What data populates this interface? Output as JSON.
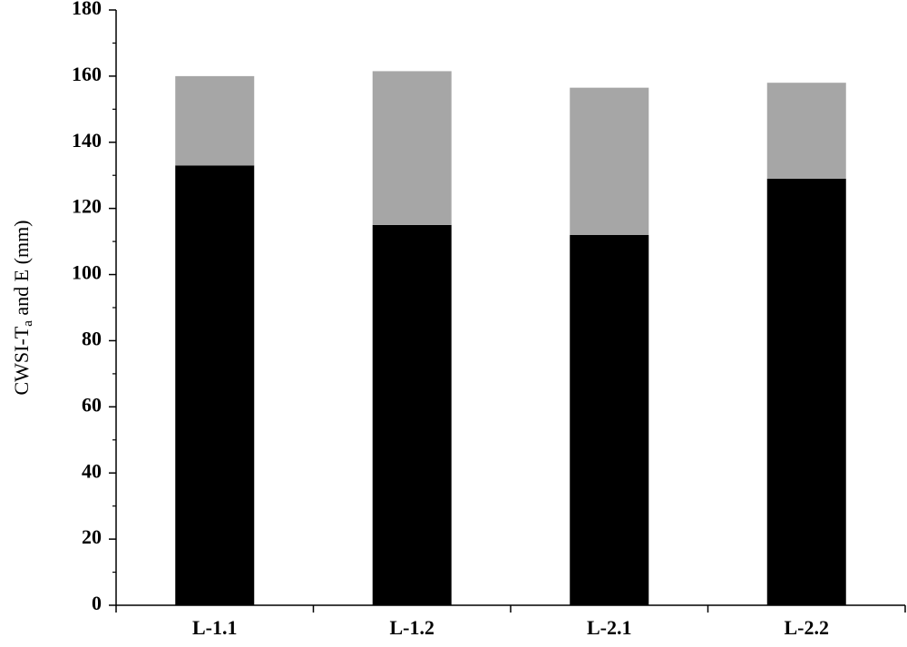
{
  "chart_data": {
    "type": "stacked_bar",
    "ylabel": [
      "CWSI-T",
      "a",
      " and E (mm)"
    ],
    "categories": [
      "L-1.1",
      "L-1.2",
      "L-2.1",
      "L-2.2"
    ],
    "series": [
      {
        "color": "#000000",
        "values": [
          133,
          115,
          112,
          129
        ]
      },
      {
        "color": "#a6a6a6",
        "values": [
          27,
          46.5,
          44.5,
          29
        ]
      }
    ],
    "ylim": [
      0,
      180
    ],
    "yticks": [
      0,
      20,
      40,
      60,
      80,
      100,
      120,
      140,
      160,
      180
    ],
    "minor_yticks": [
      10,
      30,
      50,
      70,
      90,
      110,
      130,
      150,
      170
    ]
  }
}
